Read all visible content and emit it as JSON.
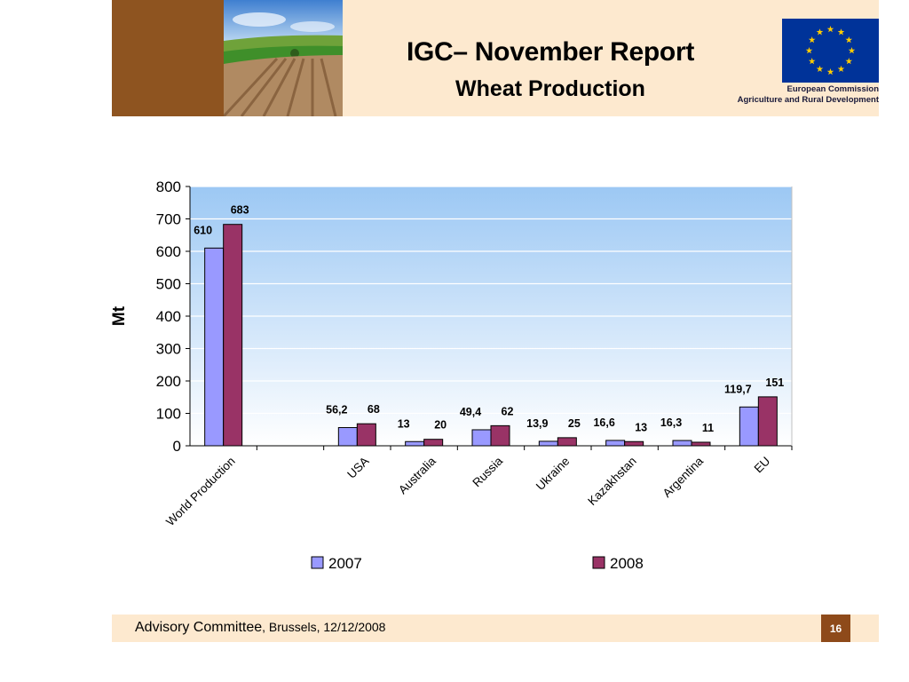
{
  "header": {
    "title": "IGC– November Report",
    "subtitle": "Wheat Production",
    "eu_org_line1": "European Commission",
    "eu_org_line2": "Agriculture and Rural Development"
  },
  "footer": {
    "committee": "Advisory Committee",
    "location_date": ", Brussels, 12/12/2008",
    "page_number": "16"
  },
  "colors": {
    "series_2007": "#9999ff",
    "series_2008": "#993366",
    "header_band": "#fde9cf",
    "eu_blue": "#003399",
    "eu_star": "#ffcc00"
  },
  "chart_data": {
    "type": "bar",
    "categories": [
      "World Production",
      "",
      "USA",
      "Australia",
      "Russia",
      "Ukraine",
      "Kazakhstan",
      "Argentina",
      "EU"
    ],
    "series": [
      {
        "name": "2007",
        "values": [
          610,
          null,
          56.2,
          13,
          49.4,
          13.9,
          16.6,
          16.3,
          119.7
        ],
        "labels": [
          "610",
          "",
          "56,2",
          "13",
          "49,4",
          "13,9",
          "16,6",
          "16,3",
          "119,7"
        ]
      },
      {
        "name": "2008",
        "values": [
          683,
          null,
          68,
          20,
          62,
          25,
          13,
          11,
          151
        ],
        "labels": [
          "683",
          "",
          "68",
          "20",
          "62",
          "25",
          "13",
          "11",
          "151"
        ]
      }
    ],
    "ylabel": "Mt",
    "ylim": [
      0,
      800
    ],
    "yticks": [
      "0",
      "100",
      "200",
      "300",
      "400",
      "500",
      "600",
      "700",
      "800"
    ],
    "grid": true,
    "legend_position": "bottom"
  }
}
